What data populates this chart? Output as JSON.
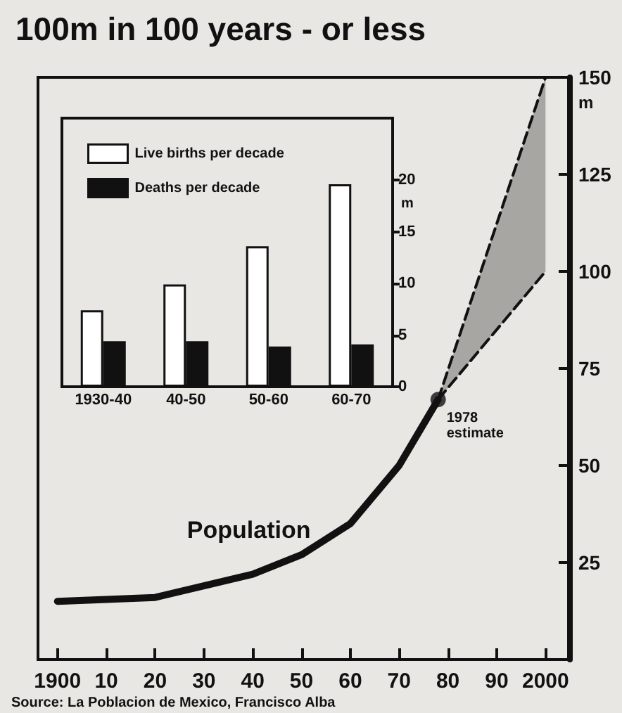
{
  "chart_data": [
    {
      "type": "line",
      "title": "100m in 100 years - or less",
      "ylabel": "m",
      "xlim": [
        1896,
        2005
      ],
      "xticks": [
        1900,
        {
          "value": 1910,
          "label": "10"
        },
        {
          "value": 1920,
          "label": "20"
        },
        {
          "value": 1930,
          "label": "30"
        },
        {
          "value": 1940,
          "label": "40"
        },
        {
          "value": 1950,
          "label": "50"
        },
        {
          "value": 1960,
          "label": "60"
        },
        {
          "value": 1970,
          "label": "70"
        },
        {
          "value": 1980,
          "label": "80"
        },
        {
          "value": 1990,
          "label": "90"
        },
        2000
      ],
      "ylim": [
        0,
        150
      ],
      "yticks": [
        25,
        50,
        75,
        100,
        125,
        150
      ],
      "series": [
        {
          "name": "Population",
          "color": "#111111",
          "x": [
            1900,
            1910,
            1920,
            1930,
            1940,
            1950,
            1960,
            1970,
            1978
          ],
          "values": [
            15,
            15.5,
            16,
            19,
            22,
            27,
            35,
            50,
            67
          ]
        },
        {
          "color": "#111111",
          "line_style": "dashed",
          "x": [
            1978,
            2000
          ],
          "values": [
            67,
            150
          ],
          "lower": [
            67,
            100
          ],
          "upper": [
            67,
            150
          ]
        },
        {
          "color": "#111111",
          "line_style": "dashed",
          "x": [
            1978,
            2000
          ],
          "values": [
            67,
            100
          ]
        },
        {
          "type": "scatter",
          "color": "#111111",
          "marker": "circle",
          "x": [
            1978
          ],
          "values": [
            67
          ]
        }
      ],
      "annotations": [
        {
          "text": "1978\nestimate",
          "x": 1978,
          "y": 67
        },
        "Source: La Poblacion de Mexico, Francisco Alba"
      ]
    },
    {
      "type": "bar",
      "ylabel": "m",
      "categories": [
        "1930-40",
        "40-50",
        "50-60",
        "60-70"
      ],
      "ylim": [
        0,
        26
      ],
      "yticks": [
        0,
        5,
        10,
        15,
        20
      ],
      "legend": "top left",
      "series": [
        {
          "name": "Live births per decade",
          "color": "#ffffff",
          "values": [
            7.4,
            9.9,
            13.6,
            19.6
          ]
        },
        {
          "name": "Deaths per decade",
          "color": "#111111",
          "values": [
            4.4,
            4.4,
            3.9,
            4.1
          ]
        }
      ]
    }
  ]
}
